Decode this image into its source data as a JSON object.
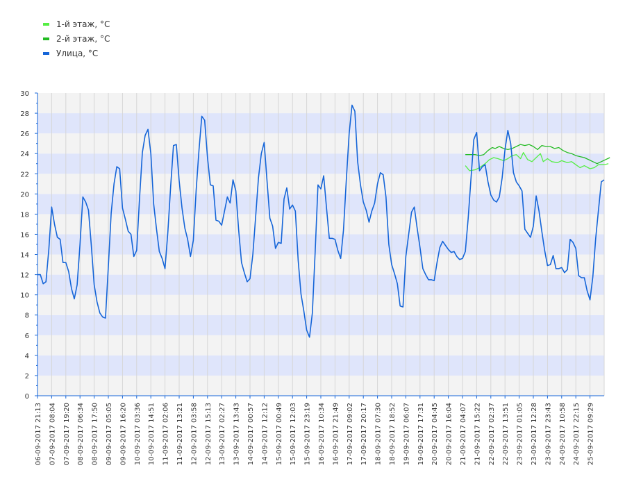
{
  "chart_data": {
    "type": "line",
    "title": "",
    "xlabel": "",
    "ylabel": "",
    "ylim": [
      0,
      30
    ],
    "yticks": [
      0,
      2,
      4,
      6,
      8,
      10,
      12,
      14,
      16,
      18,
      20,
      22,
      24,
      26,
      28,
      30
    ],
    "grid": true,
    "legend_placement": "top-left",
    "x_range": [
      "06-09-2017 21:13",
      "26-09-2017 15:00"
    ],
    "x_tick_labels": [
      "06-09-2017 21:13",
      "07-09-2017 08:04",
      "07-09-2017 19:20",
      "08-09-2017 06:34",
      "08-09-2017 17:50",
      "09-09-2017 05:05",
      "09-09-2017 16:20",
      "10-09-2017 03:36",
      "10-09-2017 14:51",
      "11-09-2017 02:06",
      "11-09-2017 13:21",
      "12-09-2017 03:58",
      "12-09-2017 15:13",
      "13-09-2017 02:27",
      "13-09-2017 13:43",
      "14-09-2017 00:57",
      "14-09-2017 12:12",
      "15-09-2017 00:49",
      "15-09-2017 12:03",
      "15-09-2017 23:19",
      "16-09-2017 10:34",
      "16-09-2017 21:49",
      "17-09-2017 09:02",
      "17-09-2017 20:17",
      "18-09-2017 07:30",
      "18-09-2017 18:52",
      "19-09-2017 06:07",
      "19-09-2017 17:31",
      "20-09-2017 04:45",
      "20-09-2017 16:04",
      "21-09-2017 04:07",
      "21-09-2017 15:22",
      "22-09-2017 02:37",
      "22-09-2017 13:51",
      "23-09-2017 01:05",
      "23-09-2017 12:28",
      "23-09-2017 23:43",
      "24-09-2017 10:58",
      "24-09-2017 22:15",
      "25-09-2017 09:29"
    ],
    "series": [
      {
        "name": "1-й этаж, °C",
        "color": "#55ee44",
        "points": [
          [
            30.2,
            22.8
          ],
          [
            30.5,
            22.3
          ],
          [
            30.9,
            22.4
          ],
          [
            31.2,
            22.6
          ],
          [
            31.6,
            23.0
          ],
          [
            31.9,
            23.4
          ],
          [
            32.2,
            23.6
          ],
          [
            32.5,
            23.5
          ],
          [
            32.9,
            23.3
          ],
          [
            33.2,
            23.5
          ],
          [
            33.5,
            23.8
          ],
          [
            33.8,
            23.9
          ],
          [
            34.1,
            23.5
          ],
          [
            34.3,
            24.1
          ],
          [
            34.6,
            23.4
          ],
          [
            34.9,
            23.2
          ],
          [
            35.2,
            23.6
          ],
          [
            35.5,
            24.0
          ],
          [
            35.7,
            23.2
          ],
          [
            36.0,
            23.5
          ],
          [
            36.3,
            23.2
          ],
          [
            36.7,
            23.1
          ],
          [
            37.0,
            23.3
          ],
          [
            37.4,
            23.1
          ],
          [
            37.7,
            23.2
          ],
          [
            38.0,
            22.9
          ],
          [
            38.3,
            22.6
          ],
          [
            38.6,
            22.8
          ],
          [
            39.0,
            22.5
          ],
          [
            39.3,
            22.6
          ],
          [
            39.6,
            22.9
          ],
          [
            40.0,
            22.9
          ],
          [
            40.3,
            23.0
          ]
        ]
      },
      {
        "name": "2-й этаж, °C",
        "color": "#22bb22",
        "points": [
          [
            30.2,
            23.9
          ],
          [
            30.5,
            23.9
          ],
          [
            30.9,
            23.9
          ],
          [
            31.2,
            23.8
          ],
          [
            31.5,
            23.9
          ],
          [
            31.8,
            24.3
          ],
          [
            32.1,
            24.6
          ],
          [
            32.3,
            24.5
          ],
          [
            32.6,
            24.7
          ],
          [
            32.9,
            24.5
          ],
          [
            33.2,
            24.4
          ],
          [
            33.5,
            24.5
          ],
          [
            33.8,
            24.7
          ],
          [
            34.1,
            24.9
          ],
          [
            34.4,
            24.8
          ],
          [
            34.7,
            24.9
          ],
          [
            35.0,
            24.7
          ],
          [
            35.3,
            24.4
          ],
          [
            35.6,
            24.8
          ],
          [
            35.9,
            24.7
          ],
          [
            36.2,
            24.7
          ],
          [
            36.5,
            24.5
          ],
          [
            36.8,
            24.6
          ],
          [
            37.1,
            24.3
          ],
          [
            37.4,
            24.1
          ],
          [
            37.7,
            24.0
          ],
          [
            38.0,
            23.8
          ],
          [
            38.3,
            23.7
          ],
          [
            38.6,
            23.6
          ],
          [
            38.9,
            23.4
          ],
          [
            39.2,
            23.2
          ],
          [
            39.5,
            23.0
          ],
          [
            39.8,
            23.2
          ],
          [
            40.1,
            23.4
          ],
          [
            40.4,
            23.6
          ]
        ]
      },
      {
        "name": "Улица, °C",
        "color": "#1565d8",
        "points": [
          [
            0.0,
            12.0
          ],
          [
            0.2,
            12.0
          ],
          [
            0.4,
            11.1
          ],
          [
            0.6,
            11.3
          ],
          [
            0.8,
            14.5
          ],
          [
            1.0,
            18.7
          ],
          [
            1.2,
            17.0
          ],
          [
            1.4,
            15.7
          ],
          [
            1.6,
            15.5
          ],
          [
            1.8,
            13.2
          ],
          [
            2.0,
            13.2
          ],
          [
            2.2,
            12.3
          ],
          [
            2.4,
            10.6
          ],
          [
            2.6,
            9.6
          ],
          [
            2.8,
            11.0
          ],
          [
            3.0,
            15.0
          ],
          [
            3.2,
            19.7
          ],
          [
            3.4,
            19.2
          ],
          [
            3.6,
            18.4
          ],
          [
            3.8,
            14.9
          ],
          [
            4.0,
            11.0
          ],
          [
            4.2,
            9.3
          ],
          [
            4.4,
            8.2
          ],
          [
            4.6,
            7.8
          ],
          [
            4.8,
            7.7
          ],
          [
            5.0,
            12.8
          ],
          [
            5.2,
            18.1
          ],
          [
            5.4,
            21.0
          ],
          [
            5.6,
            22.7
          ],
          [
            5.8,
            22.5
          ],
          [
            6.0,
            18.6
          ],
          [
            6.2,
            17.5
          ],
          [
            6.4,
            16.3
          ],
          [
            6.6,
            16.0
          ],
          [
            6.8,
            13.8
          ],
          [
            7.0,
            14.4
          ],
          [
            7.2,
            19.5
          ],
          [
            7.4,
            24.1
          ],
          [
            7.6,
            25.8
          ],
          [
            7.8,
            26.4
          ],
          [
            8.0,
            24.0
          ],
          [
            8.2,
            19.0
          ],
          [
            8.4,
            16.5
          ],
          [
            8.6,
            14.3
          ],
          [
            8.8,
            13.6
          ],
          [
            9.0,
            12.6
          ],
          [
            9.2,
            16.2
          ],
          [
            9.4,
            20.8
          ],
          [
            9.6,
            24.8
          ],
          [
            9.8,
            24.9
          ],
          [
            10.0,
            21.3
          ],
          [
            10.2,
            18.6
          ],
          [
            10.4,
            16.6
          ],
          [
            10.6,
            15.5
          ],
          [
            10.8,
            13.8
          ],
          [
            11.0,
            15.4
          ],
          [
            11.2,
            20.4
          ],
          [
            11.4,
            24.4
          ],
          [
            11.6,
            27.7
          ],
          [
            11.8,
            27.3
          ],
          [
            12.0,
            23.6
          ],
          [
            12.2,
            20.9
          ],
          [
            12.4,
            20.8
          ],
          [
            12.6,
            17.4
          ],
          [
            12.8,
            17.3
          ],
          [
            13.0,
            16.9
          ],
          [
            13.2,
            18.3
          ],
          [
            13.4,
            19.7
          ],
          [
            13.6,
            19.1
          ],
          [
            13.8,
            21.4
          ],
          [
            14.0,
            20.3
          ],
          [
            14.2,
            16.4
          ],
          [
            14.4,
            13.2
          ],
          [
            14.6,
            12.2
          ],
          [
            14.8,
            11.3
          ],
          [
            15.0,
            11.6
          ],
          [
            15.2,
            14.0
          ],
          [
            15.4,
            17.8
          ],
          [
            15.6,
            21.6
          ],
          [
            15.8,
            24.0
          ],
          [
            16.0,
            25.1
          ],
          [
            16.2,
            21.3
          ],
          [
            16.4,
            17.6
          ],
          [
            16.6,
            16.8
          ],
          [
            16.8,
            14.6
          ],
          [
            17.0,
            15.2
          ],
          [
            17.2,
            15.1
          ],
          [
            17.4,
            19.5
          ],
          [
            17.6,
            20.6
          ],
          [
            17.8,
            18.5
          ],
          [
            18.0,
            18.9
          ],
          [
            18.2,
            18.3
          ],
          [
            18.4,
            13.4
          ],
          [
            18.6,
            10.1
          ],
          [
            18.8,
            8.4
          ],
          [
            19.0,
            6.5
          ],
          [
            19.2,
            5.8
          ],
          [
            19.4,
            8.2
          ],
          [
            19.6,
            14.2
          ],
          [
            19.8,
            20.9
          ],
          [
            20.0,
            20.5
          ],
          [
            20.2,
            21.8
          ],
          [
            20.4,
            18.6
          ],
          [
            20.6,
            15.6
          ],
          [
            20.8,
            15.6
          ],
          [
            21.0,
            15.5
          ],
          [
            21.2,
            14.4
          ],
          [
            21.4,
            13.6
          ],
          [
            21.6,
            16.4
          ],
          [
            21.8,
            21.4
          ],
          [
            22.0,
            26.0
          ],
          [
            22.2,
            28.8
          ],
          [
            22.4,
            28.2
          ],
          [
            22.6,
            23.2
          ],
          [
            22.8,
            20.9
          ],
          [
            23.0,
            19.2
          ],
          [
            23.2,
            18.4
          ],
          [
            23.4,
            17.2
          ],
          [
            23.6,
            18.3
          ],
          [
            23.8,
            19.1
          ],
          [
            24.0,
            21.0
          ],
          [
            24.2,
            22.1
          ],
          [
            24.4,
            21.9
          ],
          [
            24.6,
            19.7
          ],
          [
            24.8,
            15.0
          ],
          [
            25.0,
            13.0
          ],
          [
            25.2,
            12.1
          ],
          [
            25.4,
            11.1
          ],
          [
            25.6,
            8.9
          ],
          [
            25.8,
            8.8
          ],
          [
            26.0,
            13.8
          ],
          [
            26.2,
            16.0
          ],
          [
            26.4,
            18.2
          ],
          [
            26.6,
            18.7
          ],
          [
            26.8,
            16.6
          ],
          [
            27.0,
            14.7
          ],
          [
            27.2,
            12.6
          ],
          [
            27.4,
            12.0
          ],
          [
            27.6,
            11.5
          ],
          [
            27.8,
            11.5
          ],
          [
            28.0,
            11.4
          ],
          [
            28.2,
            13.2
          ],
          [
            28.4,
            14.7
          ],
          [
            28.6,
            15.3
          ],
          [
            28.8,
            14.9
          ],
          [
            29.0,
            14.5
          ],
          [
            29.2,
            14.2
          ],
          [
            29.4,
            14.3
          ],
          [
            29.6,
            13.8
          ],
          [
            29.8,
            13.5
          ],
          [
            30.0,
            13.6
          ],
          [
            30.2,
            14.3
          ],
          [
            30.4,
            17.6
          ],
          [
            30.6,
            21.5
          ],
          [
            30.8,
            25.4
          ],
          [
            31.0,
            26.1
          ],
          [
            31.2,
            22.3
          ],
          [
            31.4,
            22.7
          ],
          [
            31.6,
            22.9
          ],
          [
            31.8,
            21.2
          ],
          [
            32.0,
            19.9
          ],
          [
            32.2,
            19.4
          ],
          [
            32.4,
            19.2
          ],
          [
            32.6,
            19.7
          ],
          [
            32.8,
            21.6
          ],
          [
            33.0,
            24.4
          ],
          [
            33.2,
            26.3
          ],
          [
            33.4,
            25.0
          ],
          [
            33.6,
            22.1
          ],
          [
            33.8,
            21.2
          ],
          [
            34.0,
            20.8
          ],
          [
            34.2,
            20.3
          ],
          [
            34.4,
            16.5
          ],
          [
            34.6,
            16.1
          ],
          [
            34.8,
            15.7
          ],
          [
            35.0,
            16.8
          ],
          [
            35.2,
            19.8
          ],
          [
            35.4,
            18.3
          ],
          [
            35.6,
            16.3
          ],
          [
            35.8,
            14.4
          ],
          [
            36.0,
            12.9
          ],
          [
            36.2,
            13.0
          ],
          [
            36.4,
            13.9
          ],
          [
            36.6,
            12.6
          ],
          [
            36.8,
            12.6
          ],
          [
            37.0,
            12.7
          ],
          [
            37.2,
            12.2
          ],
          [
            37.4,
            12.5
          ],
          [
            37.6,
            15.5
          ],
          [
            37.8,
            15.2
          ],
          [
            38.0,
            14.6
          ],
          [
            38.2,
            11.9
          ],
          [
            38.4,
            11.7
          ],
          [
            38.6,
            11.7
          ],
          [
            38.8,
            10.4
          ],
          [
            39.0,
            9.5
          ],
          [
            39.2,
            11.8
          ],
          [
            39.4,
            15.6
          ],
          [
            39.6,
            18.4
          ],
          [
            39.8,
            21.2
          ],
          [
            40.0,
            21.4
          ]
        ]
      }
    ]
  }
}
